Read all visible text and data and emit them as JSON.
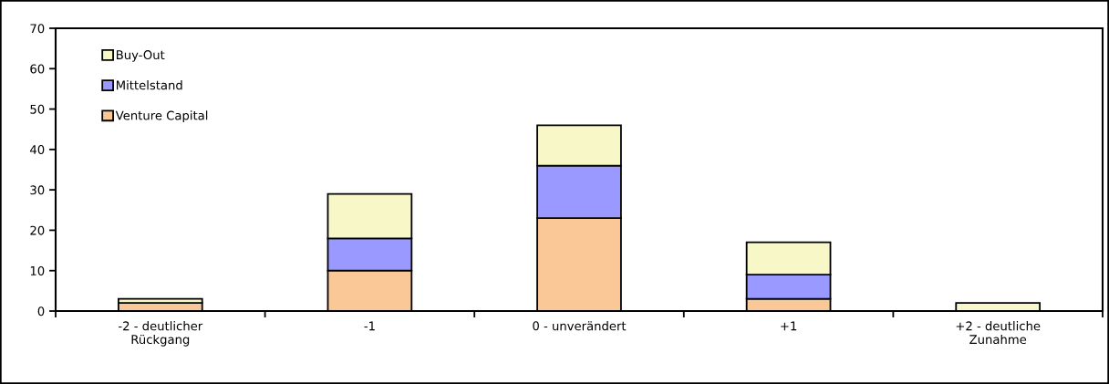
{
  "chart_data": {
    "type": "bar",
    "stacked": true,
    "categories": [
      "-2 - deutlicher\nRückgang",
      "-1",
      "0 - unverändert",
      "+1",
      "+2 - deutliche\nZunahme"
    ],
    "series": [
      {
        "name": "Venture Capital",
        "color": "#f9c896",
        "values": [
          2,
          10,
          23,
          3,
          0
        ]
      },
      {
        "name": "Mittelstand",
        "color": "#9999ff",
        "values": [
          0,
          8,
          13,
          6,
          0
        ]
      },
      {
        "name": "Buy-Out",
        "color": "#f7f7c8",
        "values": [
          1,
          11,
          10,
          8,
          2
        ]
      }
    ],
    "ylim": [
      0,
      70
    ],
    "yticks": [
      0,
      10,
      20,
      30,
      40,
      50,
      60,
      70
    ],
    "grid": false,
    "legend": "top left"
  }
}
